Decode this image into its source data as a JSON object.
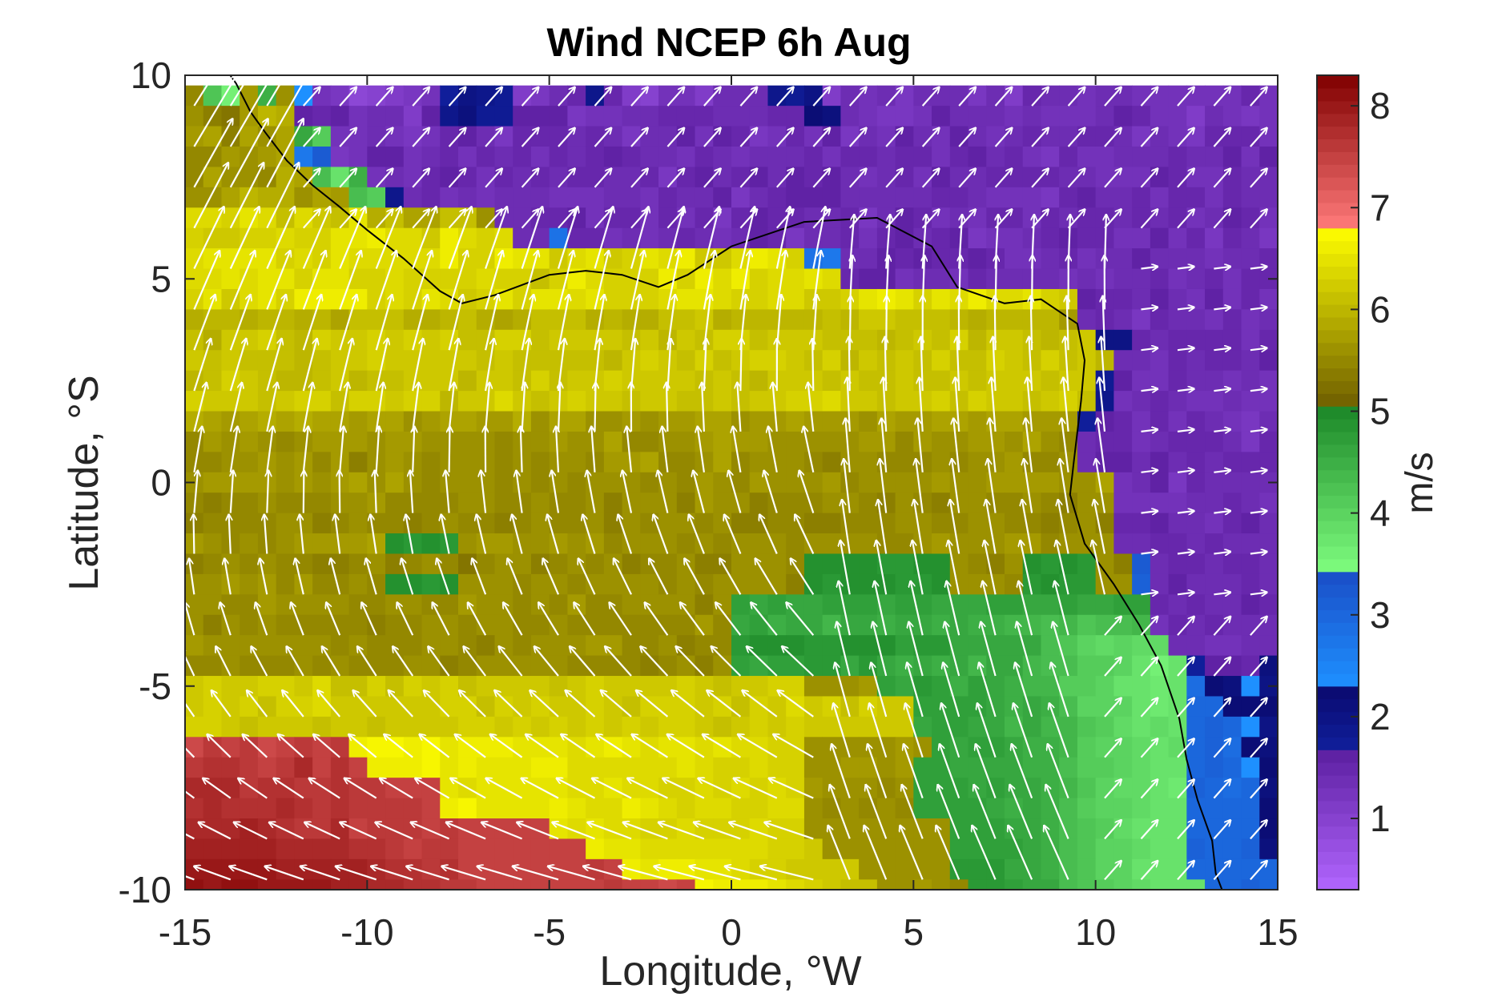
{
  "chart_data": {
    "type": "heatmap",
    "title": "Wind NCEP 6h Aug",
    "xlabel": "Longitude, °W",
    "ylabel": "Latitude, °S",
    "colorbar_label": "m/s",
    "xlim": [
      -15,
      15
    ],
    "ylim": [
      -10,
      10
    ],
    "xticks": [
      -15,
      -10,
      -5,
      0,
      5,
      10,
      15
    ],
    "yticks": [
      10,
      5,
      0,
      -5,
      -10
    ],
    "colorbar_ticks": [
      1,
      2,
      3,
      4,
      5,
      6,
      7,
      8
    ],
    "colorbar_range": [
      0.3,
      8.3
    ],
    "grid": false,
    "overlay": "wind-vectors",
    "coastline": true,
    "grid_spacing_deg": 1,
    "colormap_bands": [
      {
        "from": 0.3,
        "to": 1.7,
        "light": "#b266ff",
        "dark": "#5a1d9e"
      },
      {
        "from": 1.7,
        "to": 2.3,
        "light": "#101e9a",
        "dark": "#0a0a6e"
      },
      {
        "from": 2.3,
        "to": 3.4,
        "light": "#1e90ff",
        "dark": "#1a4fc8"
      },
      {
        "from": 3.4,
        "to": 5.0,
        "light": "#80ff80",
        "dark": "#1e8a2a"
      },
      {
        "from": 5.0,
        "to": 6.8,
        "light": "#6b5a00",
        "dark": "#ffff00"
      },
      {
        "from": 6.8,
        "to": 8.3,
        "light": "#ff7a7a",
        "dark": "#800000"
      }
    ],
    "data_rows": [
      "5.5 4.2 3.6 5.7 4.5 5.6 2.3 1.3 1.2 0.9 1.0 1.1 1.2 1.3 1.7 2.0 1.9 1.8 1.1 1.2 1.4 1.5 1.9 1.5 1.1 1.0 1.3 1.3 1.1 1.4 1.4 1.4 1.9 1.8 2.0 1.1 1.4 1.3 1.4 1.2 1.4 1.4 1.4 1.2 1.4 1.1 1.5 1.4 1.4 1.3 1.4 1.4 1.3 1.3 1.3 1.3 1.3 1.3 1.5 1.3",
      "5.6 5.4 5.3 5.7 6.0 5.9 1.6 1.5 1.6 1.3 1.4 1.4 1.1 1.6 1.9 2.1 1.8 1.8 1.6 1.6 1.6 1.2 1.3 1.3 1.4 1.4 1.5 1.5 1.5 1.4 1.4 1.4 1.5 1.5 2.2 2.1 1.4 1.3 1.2 1.2 1.3 1.6 1.4 1.4 1.4 1.3 1.4 1.3 1.3 1.3 1.4 1.6 1.5 1.3 1.3 1.1 1.4 1.3 1.2 1.3",
      "5.7 5.8 5.4 5.8 5.6 5.8 4.6 4.1 1.3 1.3 1.4 1.3 1.2 1.3 1.5 1.6 1.4 1.2 1.5 1.5 1.5 1.4 1.5 1.4 1.2 1.4 1.4 1.6 1.3 1.6 1.5 1.2 1.3 1.5 1.3 1.6 1.2 1.4 1.3 1.6 1.4 1.3 1.6 1.4 1.3 1.4 1.5 1.4 1.4 1.5 1.5 1.4 1.2 1.4 1.3 1.2 1.5 1.5 1.5 1.3",
      "5.5 5.5 5.7 5.6 5.7 5.8 2.7 3.2 1.2 1.3 1.6 1.6 1.3 1.4 1.5 1.3 1.5 1.4 1.5 1.3 1.5 1.4 1.5 1.6 1.5 1.4 1.4 1.3 1.5 1.4 1.3 1.4 1.4 1.4 1.5 1.3 1.5 1.5 1.4 1.5 1.5 1.3 1.5 1.6 1.4 1.5 1.3 1.2 1.5 1.3 1.3 1.4 1.4 1.4 1.5 1.4 1.4 1.6 1.3 1.6",
      "5.5 5.8 5.6 5.6 5.5 5.9 5.8 4.3 3.8 4.5 1.3 1.4 1.3 1.5 1.6 1.5 1.3 1.5 1.4 1.5 1.4 1.5 1.5 1.4 1.4 1.5 1.2 1.5 1.6 1.4 1.5 1.6 1.4 1.6 1.5 1.6 1.4 1.3 1.4 1.5 1.3 1.6 1.4 1.4 1.5 1.5 1.5 1.5 1.4 1.4 1.3 1.3 1.3 1.6 1.5 1.3 1.3 1.5 1.4 1.4",
      "5.6 5.6 5.8 6.0 5.9 5.9 5.6 5.8 5.7 4.3 4.1 1.9 1.4 1.5 1.3 1.4 1.3 1.4 1.4 1.4 1.3 1.3 1.3 1.4 1.4 1.3 1.5 1.4 1.4 1.6 1.2 1.4 1.5 1.6 1.6 1.6 1.4 1.4 1.4 1.4 1.4 1.5 1.5 1.4 1.3 1.3 1.3 1.2 1.5 1.6 1.4 1.4 1.5 1.3 1.5 1.5 1.3 1.5 1.4 1.4",
      "6.4 6.4 6.3 6.5 6.4 6.1 6.4 6.2 6.1 6.5 5.9 6.1 5.8 5.8 6.1 6.1 5.6 1.4 1.4 1.5 1.5 1.6 1.3 1.5 1.5 1.3 1.5 1.3 1.5 1.2 1.5 1.6 1.5 1.5 1.4 1.4 1.5 1.2 1.4 1.6 1.5 1.3 1.4 1.3 1.5 1.5 1.3 1.5 1.4 1.5 1.5 1.4 1.5 1.4 1.5 1.3 1.4 1.6 1.5 1.3",
      "6.3 6.2 6.2 6.3 6.3 6.4 6.3 6.3 6.5 6.5 6.6 6.4 6.4 6.2 6.6 6.4 6.3 6.4 1.4 1.4 2.8 1.5 1.5 1.3 1.4 1.3 1.4 1.5 1.4 1.3 1.4 1.6 1.5 1.2 1.4 1.4 1.5 1.3 1.5 1.6 1.4 1.5 1.6 1.2 1.3 1.3 1.4 1.5 1.6 1.5 1.5 1.3 1.3 1.6 1.3 1.5 1.2 1.5 1.4 1.2",
      "6.4 6.5 6.5 6.5 6.5 6.3 6.4 6.3 6.5 6.4 6.4 6.4 6.4 6.4 6.6 6.3 6.3 6.6 6.5 6.5 6.2 6.4 6.5 6.2 6.3 6.5 6.4 6.6 6.2 6.2 6.4 6.6 6.5 6.3 2.8 2.7 1.4 1.4 1.6 1.5 1.6 1.5 1.5 1.6 1.5 1.3 1.3 1.4 1.5 1.3 1.4 1.4 1.6 1.4 1.4 1.4 1.3 1.4 1.4 1.5",
      "6.4 6.4 6.5 6.4 6.5 6.5 6.3 6.5 6.5 6.3 6.3 6.4 6.3 6.3 6.3 6.3 6.4 6.3 6.3 6.1 6.3 6.6 6.4 6.3 6.3 6.3 6.6 6.3 6.6 6.4 6.6 6.3 6.4 6.4 6.5 6.4 1.5 1.6 1.6 1.3 1.4 1.4 1.3 1.5 1.4 1.4 1.4 1.4 1.3 1.4 1.3 1.4 1.4 1.5 1.3 1.4 1.5 1.3 1.5 1.5",
      "6.3 6.5 6.2 6.4 6.5 6.3 6.6 6.6 6.6 6.6 6.3 6.4 6.3 6.5 6.4 6.2 6.3 6.5 6.3 6.5 6.5 6.4 6.5 6.3 6.3 6.3 6.4 6.5 6.5 6.4 6.3 6.3 6.4 6.4 6.2 6.2 6.3 6.5 6.6 6.5 6.3 6.5 6.4 6.6 6.4 6.4 6.5 6.3 6.2 1.6 1.5 1.5 1.4 1.6 1.4 1.3 1.6 1.3 1.5 1.3",
      "5.9 6.0 6.0 5.9 6.0 6.0 5.9 6.0 5.8 6.1 6.1 6.1 5.9 5.9 6.0 6.1 5.9 5.8 5.9 6.1 6.1 6.1 5.9 6.0 5.9 5.9 6.1 6.1 6.2 5.9 6.0 6.0 6.0 6.0 6.0 6.1 6.0 6.2 6.2 6.1 6.1 6.1 6.0 5.9 6.0 6.0 6.0 6.0 5.7 1.4 1.5 1.4 1.2 1.5 1.4 1.4 1.3 1.5 1.3 1.4",
      "6.1 5.9 6.2 6.2 6.3 6.1 6.0 6.3 6.2 6.2 6.3 6.2 6.3 6.2 6.3 6.1 6.1 6.3 6.3 6.1 6.2 6.2 6.2 6.2 6.1 6.2 6.0 6.2 6.1 6.3 6.3 6.1 6.2 6.2 6.2 6.1 6.1 6.1 6.0 6.1 6.2 6.1 6.3 6.0 6.2 6.2 6.1 6.0 6.1 6.2 2.0 2.0 1.5 1.4 1.5 1.5 1.5 1.5 1.3 1.5",
      "6.2 6.1 6.2 6.1 6.1 6.1 6.0 6.1 6.2 6.2 6.3 6.2 6.2 6.2 6.2 6.2 6.1 6.2 6.1 6.1 6.1 6.1 6.1 6.0 6.2 6.3 6.2 6.1 6.3 6.1 6.2 6.3 6.3 6.2 6.1 6.3 6.0 6.2 6.1 6.2 6.1 6.3 6.1 6.1 6.3 6.2 6.1 6.3 6.1 6.2 6.0 1.4 1.4 1.3 1.5 1.4 1.5 1.5 1.4 1.6",
      "6.0 6.1 6.3 6.2 6.1 6.0 6.0 6.1 6.2 6.0 6.1 6.1 6.2 6.2 6.2 6.0 6.2 6.2 6.1 6.3 6.1 6.2 6.2 6.3 6.2 6.2 6.2 6.2 6.1 6.2 6.1 6.0 6.2 6.2 6.2 6.1 6.2 6.1 6.1 6.2 6.1 6.1 6.2 6.1 6.2 6.2 6.2 6.1 6.2 6.2 1.8 1.6 1.3 1.3 1.5 1.4 1.4 1.3 1.4 1.3",
      "6.3 6.2 6.2 6.2 6.1 6.2 6.3 6.3 6.1 6.3 6.3 6.2 6.3 6.3 6.0 6.2 6.2 6.4 6.2 6.1 6.2 6.3 6.2 6.2 6.1 6.2 6.2 6.1 6.1 6.2 6.1 6.2 6.2 6.3 6.3 6.4 6.2 6.2 6.1 6.2 6.2 6.3 6.1 6.3 6.2 6.2 6.1 6.2 6.3 6.1 1.9 1.3 1.4 1.5 1.4 1.3 1.3 1.4 1.3 1.3",
      "5.9 5.8 5.7 5.8 5.9 5.8 5.9 5.8 5.8 5.7 5.8 5.8 5.6 5.7 5.8 5.8 5.7 5.7 5.9 5.6 5.8 5.8 5.6 5.6 5.7 5.6 5.7 5.7 5.8 5.8 5.6 5.7 5.7 5.8 5.7 5.7 5.7 5.6 5.8 5.7 5.7 5.8 5.8 5.7 5.8 5.8 5.7 5.7 5.7 1.7 1.6 1.5 1.3 1.5 1.3 1.5 1.4 1.3 1.2 1.4",
      "5.5 5.7 5.6 5.7 5.6 5.5 5.6 5.7 5.7 5.7 5.6 5.7 5.7 5.6 5.6 5.6 5.6 5.5 5.6 5.6 5.7 5.6 5.6 5.8 5.5 5.5 5.6 5.6 5.7 5.8 5.7 5.7 5.6 5.6 5.6 5.6 5.6 5.7 5.7 5.5 5.7 5.6 5.6 5.7 5.7 5.6 5.8 5.6 5.5 1.4 1.5 1.5 1.3 1.4 1.5 1.5 1.5 1.4 1.2 1.5",
      "5.5 5.5 5.6 5.6 5.7 5.6 5.7 5.5 5.7 5.4 5.6 5.7 5.6 5.5 5.6 5.6 5.6 5.5 5.6 5.5 5.6 5.6 5.5 5.7 5.7 5.8 5.5 5.5 5.6 5.8 5.5 5.6 5.6 5.6 5.5 5.4 5.6 5.6 5.5 5.5 5.5 5.6 5.5 5.6 5.6 5.7 5.5 5.5 5.6 1.4 1.6 1.6 1.4 1.6 1.4 1.5 1.4 1.5 1.5 1.5",
      "5.6 5.7 5.7 5.7 5.7 5.6 5.7 5.6 5.7 5.8 5.6 5.8 5.6 5.5 5.6 5.6 5.6 5.5 5.6 5.5 5.6 5.5 5.6 5.6 5.6 5.5 5.6 5.5 5.7 5.6 5.5 5.7 5.6 5.6 5.6 5.7 5.5 5.6 5.6 5.6 5.6 5.7 5.6 5.6 5.7 5.7 5.7 5.7 5.6 5.6 5.8 1.3 1.4 1.6 1.2 1.5 1.4 1.4 1.4 1.4",
      "5.5 5.4 5.5 5.5 5.6 5.5 5.5 5.5 5.6 5.6 5.7 5.5 5.5 5.5 5.5 5.6 5.6 5.5 5.5 5.6 5.5 5.5 5.6 5.4 5.6 5.6 5.6 5.4 5.7 5.6 5.6 5.4 5.5 5.5 5.5 5.6 5.6 5.5 5.4 5.6 5.5 5.4 5.6 5.6 5.5 5.5 5.6 5.5 5.4 5.6 5.6 1.3 1.3 1.3 1.3 1.4 1.4 1.5 1.4 1.3",
      "5.4 5.5 5.5 5.5 5.5 5.6 5.6 5.4 5.5 5.6 5.5 5.5 5.4 5.5 5.6 5.5 5.5 5.4 5.5 5.6 5.5 5.5 5.6 5.4 5.6 5.5 5.6 5.6 5.5 5.6 5.4 5.4 5.5 5.5 5.4 5.4 5.5 5.5 5.5 5.6 5.6 5.5 5.5 5.6 5.6 5.5 5.5 5.4 5.5 5.6 5.4 1.5 1.5 1.6 1.4 1.4 1.3 1.5 1.6 1.4",
      "5.7 5.6 5.5 5.6 5.5 5.6 5.7 5.7 5.7 5.7 5.8 4.9 4.8 4.9 4.8 5.6 5.7 5.7 5.6 5.6 5.7 5.6 5.7 5.5 5.6 5.6 5.6 5.5 5.6 5.5 5.6 5.6 5.6 5.5 5.6 5.6 5.6 5.6 5.5 5.5 5.6 5.7 5.6 5.6 5.6 5.7 5.7 5.5 5.6 5.6 5.6 1.4 1.4 1.5 1.5 1.4 1.5 1.4 1.4 1.4",
      "5.4 5.5 5.6 5.5 5.6 5.5 5.5 5.4 5.4 5.5 5.6 5.4 5.5 5.6 5.5 5.3 5.5 5.6 5.6 5.4 5.5 5.6 5.5 5.6 5.4 5.5 5.5 5.6 5.4 5.4 5.6 5.6 5.6 5.5 4.9 4.9 4.9 4.9 4.8 4.8 4.9 4.9 5.6 5.5 5.4 5.6 4.9 4.8 4.9 4.8 5.6 5.4 3.2 1.4 1.5 1.5 1.4 1.5 1.5 1.4",
      "5.6 5.6 5.7 5.6 5.7 5.5 5.7 5.5 5.5 5.6 5.5 4.9 4.9 4.8 4.9 5.6 5.6 5.6 5.5 5.6 5.6 5.5 5.6 5.6 5.6 5.6 5.5 5.6 5.5 5.6 5.6 5.6 5.6 5.4 4.9 4.8 4.9 4.9 4.9 4.8 4.8 4.9 5.6 5.6 5.6 5.5 4.8 4.9 4.8 4.8 5.6 5.6 3.1 1.4 1.6 1.4 1.4 1.4 1.5 1.4",
      "5.6 5.6 5.5 5.5 5.7 5.6 5.6 5.6 5.6 5.5 5.5 5.6 5.6 5.5 5.5 5.7 5.6 5.6 5.5 5.6 5.5 5.7 5.5 5.5 5.6 5.6 5.6 5.6 5.4 5.6 4.7 4.6 4.7 4.6 4.6 4.7 4.7 4.7 4.6 4.7 4.7 4.6 4.6 4.6 4.7 4.7 4.6 4.6 4.7 4.6 4.6 4.7 4.7 1.5 1.4 1.5 1.4 1.4 1.6 1.5",
      "5.6 5.4 5.6 5.5 5.6 5.5 5.5 5.5 5.5 5.5 5.4 5.5 5.5 5.6 5.6 5.5 5.6 5.6 5.5 5.5 5.6 5.5 5.5 5.5 5.5 5.5 5.5 5.5 5.7 5.5 4.6 4.7 4.5 4.6 4.6 4.4 4.6 4.6 4.5 4.6 4.6 4.5 4.6 4.5 4.5 4.4 4.4 4.3 4.4 4.2 4.3 4.3 4.4 1.3 1.5 1.4 1.5 1.4 1.4 1.4",
      "5.7 5.6 5.6 5.6 5.6 5.6 5.6 5.6 5.5 5.6 5.5 5.5 5.5 5.6 5.6 5.5 5.4 5.6 5.5 5.6 5.6 5.6 5.7 5.7 5.5 5.5 5.6 5.4 5.5 5.5 4.8 4.9 4.9 4.9 4.8 4.8 4.9 4.9 4.9 4.7 4.8 4.8 4.6 4.6 4.6 4.6 4.6 4.3 4.2 4.0 3.9 4.0 3.9 3.9 1.4 1.4 1.3 1.3 1.4 1.4",
      "5.5 5.5 5.6 5.5 5.5 5.5 5.6 5.5 5.6 5.5 5.5 5.5 5.6 5.6 5.4 5.5 5.6 5.6 5.6 5.6 5.6 5.5 5.5 5.5 5.5 5.4 5.5 5.6 5.4 5.6 4.7 4.6 4.7 4.7 4.8 4.8 4.6 4.8 4.6 4.5 4.6 4.5 4.6 4.4 4.6 4.6 4.4 4.3 4.3 4.1 4.1 4.0 3.8 3.6 3.8 1.7 1.6 1.6 1.5 2.1",
      "6.2 6.3 6.2 6.2 6.3 6.3 6.2 6.4 6.1 6.1 6.3 6.1 6.3 6.2 6.3 6.1 6.2 6.2 6.2 6.2 6.1 6.2 6.3 6.2 6.2 6.2 6.2 6.3 6.2 6.1 6.2 6.2 6.3 6.3 5.6 5.6 5.6 5.7 4.7 4.6 4.8 4.7 4.5 4.7 4.6 4.5 4.4 4.4 4.1 4.1 4.0 3.8 3.8 3.7 3.8 2.9 2.2 2.1 2.3 2.0",
      "6.2 6.3 6.2 6.3 6.1 6.3 6.3 6.4 6.2 6.2 6.2 6.2 6.2 6.2 6.3 6.3 6.1 6.3 6.2 6.3 6.2 6.2 6.3 6.2 6.1 6.3 6.3 6.3 6.2 6.3 6.1 6.3 6.2 6.4 6.2 6.3 6.1 6.3 6.2 6.2 4.7 4.7 4.7 4.7 4.6 4.5 4.6 4.5 4.3 4.0 4.0 4.0 3.8 3.7 3.8 3.0 3.0 2.2 2.2 2.2",
      "6.3 6.3 6.2 6.1 6.2 6.2 6.2 6.1 6.2 6.2 6.1 6.2 6.2 6.2 6.2 6.3 6.3 6.2 6.3 6.2 6.3 6.2 6.3 6.2 6.3 6.2 6.3 6.3 6.2 6.1 6.2 6.3 6.2 6.3 6.2 6.2 6.2 6.2 6.2 6.2 4.6 4.7 4.7 4.6 4.6 4.4 4.6 4.4 4.4 4.2 4.1 3.9 3.8 3.9 3.8 3.0 3.1 3.0 2.3 2.0",
      "7.4 7.6 7.5 7.6 7.4 7.5 7.6 7.5 7.6 6.6 6.7 6.7 6.6 6.7 6.5 6.6 6.6 6.6 6.5 6.5 6.5 6.4 6.5 6.6 6.5 6.4 6.5 6.5 6.4 6.5 6.4 6.4 6.3 6.3 5.6 5.6 5.6 5.6 5.6 5.7 5.6 4.7 4.6 4.7 4.7 4.6 4.5 4.5 4.4 4.1 4.0 4.0 3.9 3.8 3.9 3.0 3.1 2.9 2.2 2.1",
      "7.6 7.7 7.7 7.6 7.5 7.6 7.8 7.5 7.7 7.5 6.6 6.6 6.6 6.7 6.5 6.6 6.5 6.5 6.5 6.6 6.6 6.4 6.4 6.4 6.4 6.4 6.4 6.5 6.4 6.3 6.3 6.4 6.3 6.3 5.6 5.6 5.7 5.7 5.6 5.7 4.7 4.7 4.6 4.6 4.6 4.6 4.5 4.5 4.3 4.1 4.1 4.0 3.9 3.8 3.8 3.0 3.1 3.0 2.3 2.2",
      "7.8 7.8 7.8 7.6 7.7 7.7 7.6 7.6 7.7 7.6 7.6 7.5 7.5 7.5 6.5 6.4 6.5 6.5 6.5 6.5 6.5 6.4 6.4 6.5 6.4 6.4 6.3 6.3 6.4 6.3 6.4 6.3 6.4 6.3 5.7 5.6 5.6 5.6 5.5 5.6 4.7 4.7 4.7 4.6 4.7 4.6 4.6 4.5 4.4 4.2 4.0 3.9 3.9 3.8 3.7 3.1 3.0 2.9 3.0 2.1",
      "7.7 7.8 7.7 7.7 7.7 7.8 7.7 7.6 7.7 7.6 7.6 7.6 7.6 7.5 6.6 6.7 6.5 6.5 6.5 6.5 6.6 6.5 6.4 6.4 6.6 6.5 6.4 6.3 6.4 6.4 6.3 6.3 6.4 6.4 5.6 5.5 5.6 5.5 5.6 5.5 4.7 4.7 4.7 4.7 4.6 4.5 4.6 4.5 4.3 4.1 4.0 4.0 3.9 3.8 3.8 3.0 3.0 3.0 3.0 2.2",
      "7.8 7.8 7.8 7.9 7.8 7.7 7.6 7.6 7.8 7.5 7.6 7.6 7.6 7.5 7.6 7.5 7.5 7.5 7.5 7.5 6.5 6.4 6.5 6.4 6.4 6.3 6.3 6.4 6.3 6.3 6.3 6.4 6.3 6.3 5.6 5.6 5.6 5.6 5.6 5.6 5.6 5.6 4.7 4.7 4.7 4.6 4.6 4.5 4.3 4.2 4.1 3.9 3.8 3.8 3.8 3.0 3.0 3.0 3.0 2.2",
      "7.9 7.9 7.9 7.9 7.9 7.8 7.8 7.8 7.8 7.7 7.7 7.6 7.5 7.6 7.6 7.5 7.5 7.5 7.5 7.5 7.5 7.5 6.6 6.5 6.5 6.4 6.4 6.4 6.4 6.4 6.4 6.4 6.3 6.3 6.2 5.6 5.6 5.6 5.6 5.6 5.6 5.6 4.7 4.7 4.7 4.7 4.6 4.5 4.3 4.2 4.0 4.0 3.9 3.8 3.8 3.1 3.0 3.0 3.1 2.1",
      "8.0 8.0 8.0 8.0 8.0 7.9 7.9 7.9 7.9 7.9 7.8 7.7 7.7 7.6 7.7 7.5 7.5 7.5 7.5 7.5 7.5 7.5 7.6 7.5 6.6 6.5 6.6 6.6 6.5 6.5 6.4 6.3 6.3 6.2 6.2 6.2 6.2 5.6 5.6 5.6 5.6 5.6 4.8 4.8 4.8 4.6 4.6 4.5 4.3 4.2 4.0 4.0 3.8 3.8 3.8 3.0 3.0 3.0 3.0 3.0",
      "8.1 8.0 8.1 8.1 8.0 8.0 8.0 8.0 7.9 7.9 7.8 7.8 7.7 7.7 7.6 7.6 7.5 7.5 7.5 7.5 7.5 7.5 7.5 7.6 7.5 7.5 7.4 7.5 6.7 6.6 6.6 6.6 6.5 6.4 6.3 6.2 6.1 6.1 5.6 5.6 5.7 5.6 5.5 4.8 4.8 4.7 4.6 4.6 4.3 4.2 4.1 4.0 3.9 3.8 3.8 3.8 3.0 3.0 3.1 3.0"
    ]
  }
}
